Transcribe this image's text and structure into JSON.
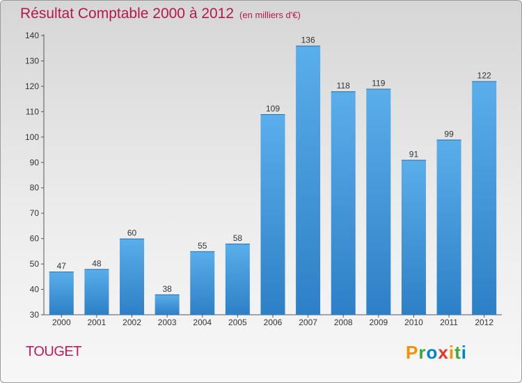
{
  "title": "Résultat Comptable 2000 à 2012",
  "subtitle": "(en milliers d'€)",
  "commune": "TOUGET",
  "logo": {
    "letters": [
      "P",
      "r",
      "o",
      "x",
      "i",
      "t",
      "i"
    ],
    "colors": [
      "#f39200",
      "#3aa935",
      "#0082c8",
      "#e6332a",
      "#f39200",
      "#3aa935",
      "#0082c8"
    ]
  },
  "colors": {
    "bar_top": "#5aaeea",
    "bar_bottom": "#2d80c6",
    "title": "#b5184f"
  },
  "chart_data": {
    "type": "bar",
    "title": "Résultat Comptable 2000 à 2012",
    "xlabel": "",
    "ylabel": "",
    "categories": [
      "2000",
      "2001",
      "2002",
      "2003",
      "2004",
      "2005",
      "2006",
      "2007",
      "2008",
      "2009",
      "2010",
      "2011",
      "2012"
    ],
    "values": [
      47,
      48,
      60,
      38,
      55,
      58,
      109,
      136,
      118,
      119,
      91,
      99,
      122
    ],
    "ylim": [
      30,
      140
    ],
    "yticks": [
      30,
      40,
      50,
      60,
      70,
      80,
      90,
      100,
      110,
      120,
      130,
      140
    ],
    "grid": false
  }
}
